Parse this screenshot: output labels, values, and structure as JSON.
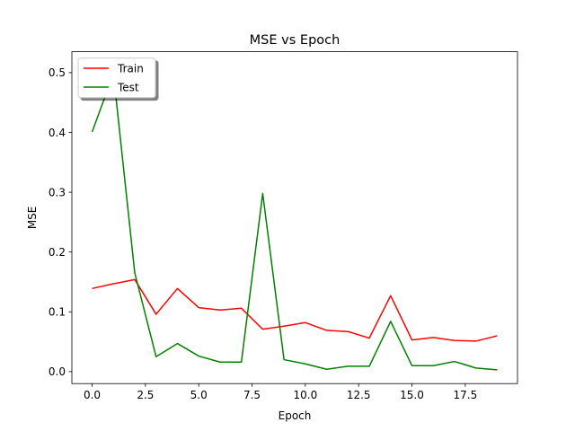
{
  "chart_data": {
    "type": "line",
    "title": "MSE vs Epoch",
    "xlabel": "Epoch",
    "ylabel": "MSE",
    "xlim": [
      -0.95,
      19.95
    ],
    "ylim": [
      -0.02,
      0.535
    ],
    "xticks": [
      0.0,
      2.5,
      5.0,
      7.5,
      10.0,
      12.5,
      15.0,
      17.5
    ],
    "xtick_labels": [
      "0.0",
      "2.5",
      "5.0",
      "7.5",
      "10.0",
      "12.5",
      "15.0",
      "17.5"
    ],
    "yticks": [
      0.0,
      0.1,
      0.2,
      0.3,
      0.4,
      0.5
    ],
    "ytick_labels": [
      "0.0",
      "0.1",
      "0.2",
      "0.3",
      "0.4",
      "0.5"
    ],
    "grid": false,
    "legend_position": "top-left",
    "x": [
      0,
      1,
      2,
      3,
      4,
      5,
      6,
      7,
      8,
      9,
      10,
      11,
      12,
      13,
      14,
      15,
      16,
      17,
      18,
      19
    ],
    "series": [
      {
        "name": "Train",
        "color": "#ff0000",
        "values": [
          0.139,
          0.147,
          0.154,
          0.096,
          0.139,
          0.107,
          0.103,
          0.106,
          0.071,
          0.076,
          0.082,
          0.069,
          0.067,
          0.056,
          0.127,
          0.053,
          0.057,
          0.052,
          0.051,
          0.06
        ]
      },
      {
        "name": "Test",
        "color": "#008000",
        "values": [
          0.401,
          0.498,
          0.165,
          0.025,
          0.047,
          0.026,
          0.016,
          0.016,
          0.298,
          0.02,
          0.013,
          0.004,
          0.009,
          0.009,
          0.084,
          0.01,
          0.01,
          0.017,
          0.006,
          0.003
        ]
      }
    ]
  }
}
